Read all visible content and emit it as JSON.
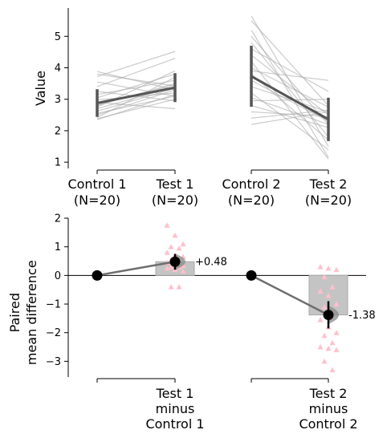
{
  "chart_data": [
    {
      "type": "paired-slopegraph",
      "ylabel": "Value",
      "ylim": [
        0.8,
        5.9
      ],
      "yticks": [
        1,
        2,
        3,
        4,
        5
      ],
      "groups": [
        {
          "label": "Control 1",
          "n_label": "(N=20)"
        },
        {
          "label": "Test 1",
          "n_label": "(N=20)"
        },
        {
          "label": "Control 2",
          "n_label": "(N=20)"
        },
        {
          "label": "Test 2",
          "n_label": "(N=20)"
        }
      ],
      "pairs": [
        {
          "from": "Control 1",
          "to": "Test 1",
          "values": [
            [
              3.88,
              3.3
            ],
            [
              3.8,
              3.42
            ],
            [
              3.72,
              4.52
            ],
            [
              3.55,
              3.1
            ],
            [
              3.4,
              4.3
            ],
            [
              3.25,
              2.95
            ],
            [
              3.15,
              3.6
            ],
            [
              3.05,
              3.8
            ],
            [
              2.98,
              3.2
            ],
            [
              2.9,
              2.7
            ],
            [
              2.82,
              3.45
            ],
            [
              2.75,
              3.9
            ],
            [
              2.7,
              3.4
            ],
            [
              2.62,
              3.35
            ],
            [
              2.55,
              3.1
            ],
            [
              2.5,
              3.3
            ],
            [
              2.42,
              3.7
            ],
            [
              2.38,
              3.0
            ],
            [
              2.35,
              3.15
            ],
            [
              2.8,
              3.5
            ]
          ],
          "mean": [
            2.88,
            3.37
          ],
          "sd": [
            0.44,
            0.46
          ]
        },
        {
          "from": "Control 2",
          "to": "Test 2",
          "values": [
            [
              5.65,
              1.5
            ],
            [
              5.5,
              2.8
            ],
            [
              5.2,
              1.15
            ],
            [
              5.0,
              2.2
            ],
            [
              4.8,
              1.8
            ],
            [
              4.6,
              3.25
            ],
            [
              4.4,
              2.5
            ],
            [
              4.2,
              1.1
            ],
            [
              4.0,
              2.75
            ],
            [
              3.9,
              3.6
            ],
            [
              3.8,
              1.7
            ],
            [
              3.6,
              2.3
            ],
            [
              3.4,
              2.6
            ],
            [
              3.2,
              1.4
            ],
            [
              3.05,
              2.2
            ],
            [
              2.95,
              3.0
            ],
            [
              2.8,
              2.1
            ],
            [
              2.6,
              2.45
            ],
            [
              2.4,
              2.65
            ],
            [
              2.2,
              2.6
            ]
          ],
          "mean": [
            3.73,
            2.36
          ],
          "sd": [
            0.97,
            0.69
          ]
        }
      ]
    },
    {
      "type": "paired-mean-difference",
      "ylabel": "Paired\nmean difference",
      "ylim": [
        -3.55,
        2.0
      ],
      "yticks": [
        -3,
        -2,
        -1,
        0,
        1,
        2
      ],
      "comparisons": [
        {
          "label": "Test 1\nminus\nControl 1",
          "mean_diff": 0.48,
          "annotation": "+0.48",
          "ci": [
            0.2,
            0.75
          ],
          "bar": [
            0.0,
            0.48
          ],
          "bootstrap_violin": {
            "center": 0.48,
            "spread": 0.28
          },
          "points": [
            1.75,
            1.4,
            1.1,
            1.0,
            0.95,
            0.8,
            0.7,
            0.65,
            0.55,
            0.5,
            0.45,
            0.4,
            0.35,
            0.3,
            0.3,
            0.25,
            0.2,
            0.15,
            -0.4,
            -0.4
          ]
        },
        {
          "label": "Test 2\nminus\nControl 2",
          "mean_diff": -1.38,
          "annotation": "-1.38",
          "ci": [
            -1.85,
            -0.9
          ],
          "bar": [
            0.0,
            -1.38
          ],
          "bootstrap_violin": {
            "center": -1.38,
            "spread": 0.32
          },
          "points": [
            0.3,
            0.25,
            0.2,
            -0.05,
            -0.4,
            -0.55,
            -0.7,
            -1.0,
            -1.1,
            -1.3,
            -1.55,
            -1.8,
            -2.0,
            -2.1,
            -2.35,
            -2.5,
            -2.55,
            -2.6,
            -3.0,
            -3.3
          ]
        }
      ],
      "reference_points": [
        {
          "group": "Control 1",
          "value": 0
        },
        {
          "group": "Control 2",
          "value": 0
        }
      ]
    }
  ],
  "colors": {
    "paired_line": "#a9a9a9",
    "mean_line": "#555555",
    "diff_bar": "#c4c4c4",
    "diff_violin": "#888888",
    "diff_points": "#ffc0cb",
    "marker": "#000000"
  }
}
